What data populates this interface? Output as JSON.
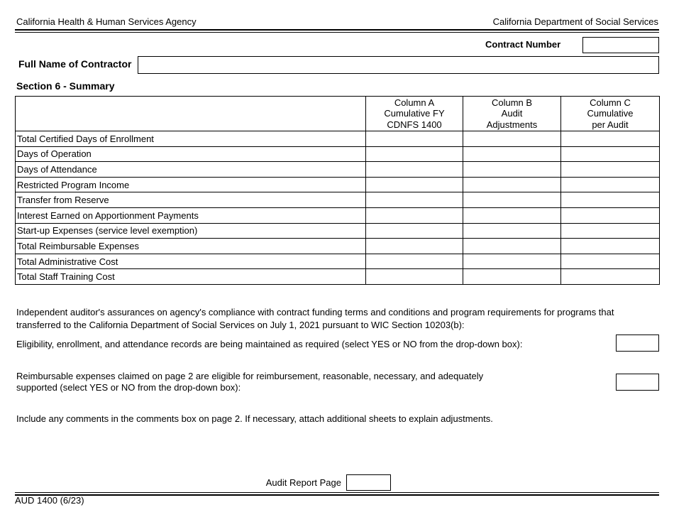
{
  "header": {
    "left": "California Health & Human Services Agency",
    "right": "California Department of Social Services"
  },
  "contract_number": {
    "label": "Contract Number",
    "value": ""
  },
  "contractor_name": {
    "label": "Full Name of Contractor",
    "value": ""
  },
  "section": {
    "title": "Section 6 - Summary"
  },
  "table": {
    "columns": [
      {
        "line1": "Column A",
        "line2": "Cumulative FY",
        "line3": "CDNFS 1400"
      },
      {
        "line1": "Column B",
        "line2": "Audit",
        "line3": "Adjustments"
      },
      {
        "line1": "Column C",
        "line2": "Cumulative",
        "line3": "per Audit"
      }
    ],
    "rows": [
      "Total Certified Days of Enrollment",
      "Days of Operation",
      "Days of Attendance",
      "Restricted Program Income",
      "Transfer from Reserve",
      "Interest Earned on Apportionment Payments",
      "Start-up Expenses (service level exemption)",
      "Total Reimbursable Expenses",
      "Total Administrative Cost",
      "Total Staff Training Cost"
    ]
  },
  "assurances": {
    "intro_line1": "Independent auditor's assurances on agency's compliance with contract funding terms and conditions and program requirements for programs that",
    "intro_line2": "transferred to the California Department of Social Services on July 1, 2021 pursuant to WIC Section 10203(b):",
    "eligibility": "Eligibility, enrollment, and attendance records are being maintained as required (select YES or NO from the drop-down box):",
    "reimbursable_line1": "Reimbursable expenses claimed on page 2 are eligible for reimbursement, reasonable, necessary, and adequately",
    "reimbursable_line2": "supported (select YES or NO from the drop-down box):",
    "comments": "Include any comments in the comments box on page 2. If necessary, attach additional sheets to explain adjustments."
  },
  "footer": {
    "audit_page_label": "Audit Report Page",
    "form_id": "AUD 1400 (6/23)"
  }
}
